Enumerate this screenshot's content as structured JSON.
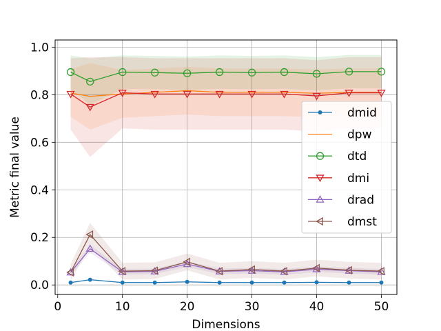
{
  "chart_data": {
    "type": "line",
    "title": "",
    "xlabel": "Dimensions",
    "ylabel": "Metric final value",
    "xlim": [
      -0.4,
      52.4
    ],
    "ylim": [
      -0.04,
      1.03
    ],
    "xticks": [
      0,
      10,
      20,
      30,
      40,
      50
    ],
    "yticks": [
      0.0,
      0.2,
      0.4,
      0.6,
      0.8,
      1.0
    ],
    "xtick_labels": [
      "0",
      "10",
      "20",
      "30",
      "40",
      "50"
    ],
    "ytick_labels": [
      "0.0",
      "0.2",
      "0.4",
      "0.6",
      "0.8",
      "1.0"
    ],
    "grid": true,
    "legend_position": "center-right",
    "x": [
      2,
      5,
      10,
      15,
      20,
      25,
      30,
      35,
      40,
      45,
      50
    ],
    "series": [
      {
        "name": "dmid",
        "color": "#1f77b4",
        "marker": "dot",
        "values": [
          0.01,
          0.022,
          0.01,
          0.01,
          0.013,
          0.01,
          0.01,
          0.01,
          0.011,
          0.01,
          0.01
        ],
        "band": 0.002
      },
      {
        "name": "dpw",
        "color": "#ff7f0e",
        "marker": "none",
        "values": [
          0.807,
          0.793,
          0.803,
          0.81,
          0.817,
          0.81,
          0.81,
          0.81,
          0.806,
          0.81,
          0.81
        ],
        "band": 0.1
      },
      {
        "name": "dtd",
        "color": "#2ca02c",
        "marker": "circle",
        "values": [
          0.895,
          0.855,
          0.895,
          0.893,
          0.89,
          0.895,
          0.893,
          0.895,
          0.888,
          0.897,
          0.897
        ],
        "band": 0.07
      },
      {
        "name": "dmi",
        "color": "#d62728",
        "marker": "triangle-down",
        "values": [
          0.803,
          0.748,
          0.808,
          0.803,
          0.803,
          0.803,
          0.803,
          0.803,
          0.795,
          0.808,
          0.808
        ],
        "band": 0.15
      },
      {
        "name": "drad",
        "color": "#9467bd",
        "marker": "triangle-up",
        "values": [
          0.053,
          0.152,
          0.055,
          0.057,
          0.088,
          0.057,
          0.06,
          0.055,
          0.066,
          0.06,
          0.055
        ],
        "band": 0.012
      },
      {
        "name": "dmst",
        "color": "#8c564b",
        "marker": "triangle-left",
        "values": [
          0.053,
          0.212,
          0.058,
          0.06,
          0.097,
          0.058,
          0.065,
          0.058,
          0.071,
          0.062,
          0.058
        ],
        "band": 0.035
      }
    ]
  }
}
